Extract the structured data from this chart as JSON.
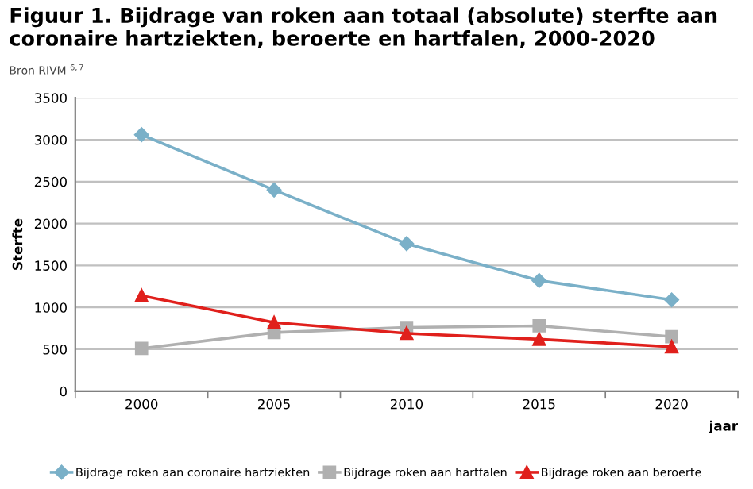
{
  "chart_data": {
    "type": "line",
    "title": "Figuur 1. Bijdrage van roken aan totaal (absolute) sterfte aan coronaire hartziekten, beroerte en hartfalen, 2000-2020",
    "subtitle": "Bron RIVM $^{6,7}$",
    "ylabel": "Sterfte",
    "xlabel": "jaar",
    "categories": [
      "2000",
      "2005",
      "2010",
      "2015",
      "2020"
    ],
    "series": [
      {
        "name": "Bijdrage roken aan coronaire hartziekten",
        "color": "#7ab0c8",
        "marker": "diamond",
        "values": [
          3060,
          2400,
          1760,
          1320,
          1090
        ]
      },
      {
        "name": "Bijdrage roken aan hartfalen",
        "color": "#b0b0b0",
        "marker": "square",
        "values": [
          510,
          700,
          760,
          780,
          650
        ]
      },
      {
        "name": "Bijdrage roken aan beroerte",
        "color": "#e0201c",
        "marker": "triangle",
        "values": [
          1140,
          820,
          690,
          620,
          530
        ]
      }
    ],
    "ylim": [
      0,
      3500
    ],
    "yticks": [
      0,
      500,
      1000,
      1500,
      2000,
      2500,
      3000,
      3500
    ],
    "grid": "y",
    "legend": "bottom"
  }
}
